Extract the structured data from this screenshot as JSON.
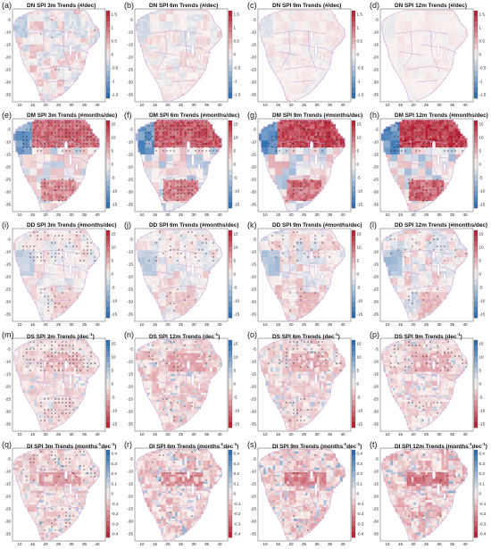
{
  "figure": {
    "colors": {
      "land_base": "#fbe4e1",
      "border": "#c9a3d6",
      "ocean": "#ffffff",
      "dot": "#1a1a1a"
    },
    "x_ticks": [
      "10",
      "15",
      "20",
      "25",
      "30",
      "35",
      "40"
    ],
    "rows": [
      {
        "ticks": [
          "1.5",
          "1",
          "0.5",
          "0",
          "-0.5",
          "-1",
          "-1.5"
        ],
        "y_ticks": [
          "-5",
          "-10",
          "-15",
          "-20",
          "-25",
          "-30",
          "-35"
        ],
        "colormap": "red-white-blue",
        "panels": [
          {
            "label": "(a)",
            "title": "DN SPI 3m Trends (#/dec)",
            "intensity": 0.45,
            "dots": 0.05
          },
          {
            "label": "(b)",
            "title": "DN SPI 6m Trends (#/dec)",
            "intensity": 0.3,
            "dots": 0.0
          },
          {
            "label": "(c)",
            "title": "DN SPI 9m Trends (#/dec)",
            "intensity": 0.2,
            "dots": 0.0
          },
          {
            "label": "(d)",
            "title": "DN SPI 12m Trends (#/dec)",
            "intensity": 0.12,
            "dots": 0.0
          }
        ]
      },
      {
        "ticks": [
          "15",
          "10",
          "5",
          "0",
          "-5",
          "-10",
          "-15"
        ],
        "y_ticks": [
          "-5",
          "-10",
          "-15",
          "-20",
          "-25",
          "-30",
          "-35"
        ],
        "colormap": "red-white-blue",
        "panels": [
          {
            "label": "(e)",
            "title": "DM SPI 3m Trends (#months/dec)",
            "intensity": 0.75,
            "dots": 0.55
          },
          {
            "label": "(f)",
            "title": "DM SPI 6m Trends (#months/dec)",
            "intensity": 0.85,
            "dots": 0.55
          },
          {
            "label": "(g)",
            "title": "DM SPI 9m Trends (#months/dec)",
            "intensity": 0.95,
            "dots": 0.35
          },
          {
            "label": "(h)",
            "title": "DM SPI 12m Trends (#months/dec)",
            "intensity": 1.0,
            "dots": 0.3
          }
        ]
      },
      {
        "ticks": [
          "15",
          "10",
          "5",
          "0",
          "-5",
          "-10",
          "-15"
        ],
        "y_ticks": [
          "-5",
          "-10",
          "-15",
          "-20",
          "-25",
          "-30",
          "-35"
        ],
        "colormap": "red-white-blue",
        "panels": [
          {
            "label": "(i)",
            "title": "DD SPI 3m Trends (#months/dec)",
            "intensity": 0.4,
            "dots": 0.4
          },
          {
            "label": "(j)",
            "title": "DD SPI 6m Trends (#months/dec)",
            "intensity": 0.45,
            "dots": 0.2
          },
          {
            "label": "(k)",
            "title": "DD SPI 9m Trends (#months/dec)",
            "intensity": 0.55,
            "dots": 0.15
          },
          {
            "label": "(l)",
            "title": "DD SPI 12m Trends (#months/dec)",
            "intensity": 0.6,
            "dots": 0.12
          }
        ]
      },
      {
        "ticks": [
          "15",
          "10",
          "5",
          "0",
          "-5",
          "-10",
          "-15"
        ],
        "y_ticks": [
          "-5",
          "-10",
          "-15",
          "-20",
          "-25",
          "-30",
          "-35"
        ],
        "colormap": "blue-white-red",
        "panels": [
          {
            "label": "(m)",
            "title": "DS SPI 3m Trends (dec",
            "sup": "-1",
            "tail": ")",
            "intensity": 0.5,
            "dots": 0.45
          },
          {
            "label": "(n)",
            "title": "DS SPI 12m Trends (dec",
            "sup": "-1",
            "tail": ")",
            "intensity": 0.65,
            "dots": 0.15
          },
          {
            "label": "(o)",
            "title": "DS SPI 6m Trends (dec",
            "sup": "-1",
            "tail": ")",
            "intensity": 0.6,
            "dots": 0.3
          },
          {
            "label": "(p)",
            "title": "DS SPI 9m Trends (dec",
            "sup": "-1",
            "tail": ")",
            "intensity": 0.6,
            "dots": 0.2
          }
        ]
      },
      {
        "ticks": [
          "0.4",
          "0.3",
          "0.2",
          "0.1",
          "0",
          "-0.1",
          "-0.2",
          "-0.3",
          "-0.4"
        ],
        "y_ticks": [
          "-5",
          "-10",
          "-15",
          "-20",
          "-25",
          "-30",
          "-35"
        ],
        "colormap": "blue-white-red",
        "panels": [
          {
            "label": "(q)",
            "title": "DI SPI 3m Trends (months",
            "sup": "-1",
            "tail": "dec",
            "sup2": "-1",
            "tail2": ")",
            "intensity": 0.65,
            "dots": 0.25
          },
          {
            "label": "(r)",
            "title": "DI SPI 6m Trends (months",
            "sup": "-1",
            "tail": "dec",
            "sup2": "-1",
            "tail2": ")",
            "intensity": 0.8,
            "dots": 0.1
          },
          {
            "label": "(s)",
            "title": "DI SPI 9m Trends (months",
            "sup": "-1",
            "tail": "dec",
            "sup2": "-1",
            "tail2": ")",
            "intensity": 0.85,
            "dots": 0.05
          },
          {
            "label": "(t)",
            "title": "DI SPI 12m Trends (months",
            "sup": "-1",
            "tail": "dec",
            "sup2": "-1",
            "tail2": ")",
            "intensity": 0.9,
            "dots": 0.05
          }
        ]
      }
    ]
  }
}
